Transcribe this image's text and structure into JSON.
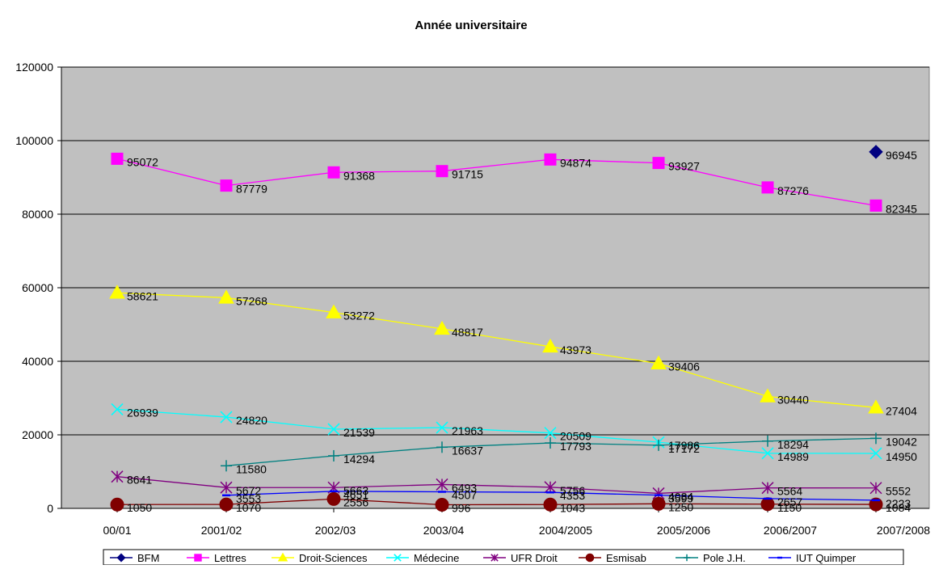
{
  "chart_data": {
    "type": "line",
    "title": "Année universitaire",
    "xlabel": "",
    "ylabel": "",
    "ylim": [
      0,
      120000
    ],
    "yticks": [
      0,
      20000,
      40000,
      60000,
      80000,
      100000,
      120000
    ],
    "grid": true,
    "legend_position": "bottom",
    "plot_background": "#c0c0c0",
    "categories": [
      "00/01",
      "2001/02",
      "2002/03",
      "2003/04",
      "2004/2005",
      "2005/2006",
      "2006/2007",
      "2007/2008"
    ],
    "series": [
      {
        "name": "BFM",
        "color": "#000080",
        "marker": "diamond",
        "values": [
          null,
          null,
          null,
          null,
          null,
          null,
          null,
          96945
        ]
      },
      {
        "name": "Lettres",
        "color": "#ff00ff",
        "marker": "square",
        "values": [
          95072,
          87779,
          91368,
          91715,
          94874,
          93927,
          87276,
          82345
        ]
      },
      {
        "name": "Droit-Sciences",
        "color": "#ffff00",
        "marker": "triangle",
        "values": [
          58621,
          57268,
          53272,
          48817,
          43973,
          39406,
          30440,
          27404
        ]
      },
      {
        "name": "Médecine",
        "color": "#00ffff",
        "marker": "x",
        "values": [
          26939,
          24820,
          21539,
          21963,
          20509,
          17986,
          14989,
          14950
        ]
      },
      {
        "name": "UFR Droit",
        "color": "#800080",
        "marker": "star",
        "values": [
          8641,
          5672,
          5663,
          6493,
          5756,
          4084,
          5564,
          5552
        ]
      },
      {
        "name": "Esmisab",
        "color": "#800000",
        "marker": "circle",
        "values": [
          1050,
          1070,
          2556,
          996,
          1043,
          1250,
          1150,
          1084
        ]
      },
      {
        "name": "Pole J.H.",
        "color": "#008080",
        "marker": "plus",
        "values": [
          null,
          11580,
          14294,
          16637,
          17793,
          17172,
          18294,
          19042
        ]
      },
      {
        "name": "IUT Quimper",
        "color": "#0000ff",
        "marker": "dash",
        "values": [
          null,
          3553,
          4651,
          4507,
          4353,
          3599,
          2657,
          2223
        ]
      }
    ]
  }
}
